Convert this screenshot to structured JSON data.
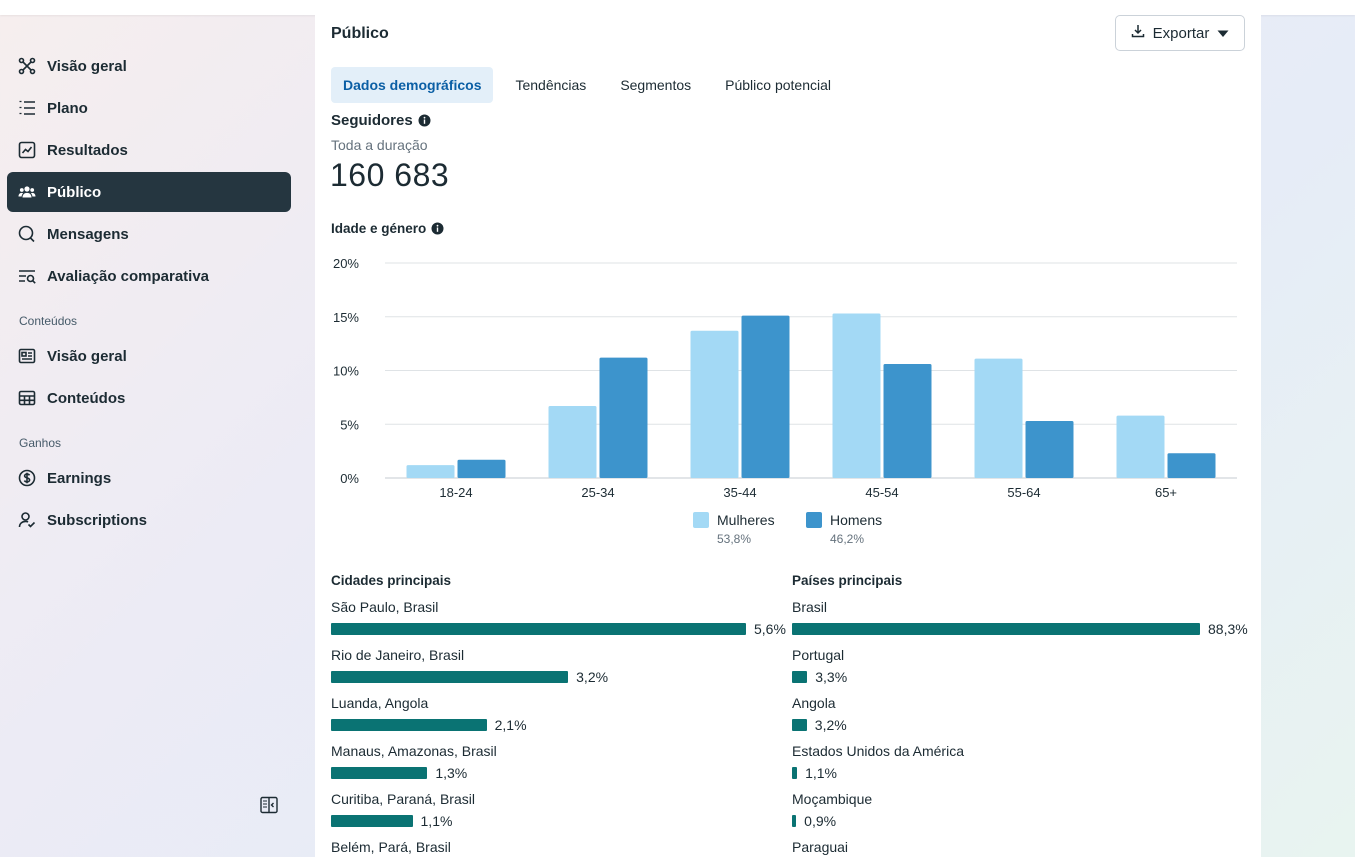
{
  "sidebar": {
    "items": [
      {
        "label": "Visão geral",
        "icon": "overview-icon"
      },
      {
        "label": "Plano",
        "icon": "list-icon"
      },
      {
        "label": "Resultados",
        "icon": "chart-line-icon"
      },
      {
        "label": "Público",
        "icon": "people-icon",
        "active": true
      },
      {
        "label": "Mensagens",
        "icon": "chat-icon"
      },
      {
        "label": "Avaliação comparativa",
        "icon": "benchmark-icon"
      }
    ],
    "content_label": "Conteúdos",
    "content_items": [
      {
        "label": "Visão geral",
        "icon": "content-overview-icon"
      },
      {
        "label": "Conteúdos",
        "icon": "table-icon"
      }
    ],
    "earnings_label": "Ganhos",
    "earnings_items": [
      {
        "label": "Earnings",
        "icon": "dollar-icon"
      },
      {
        "label": "Subscriptions",
        "icon": "subscriptions-icon"
      }
    ]
  },
  "main": {
    "title": "Público",
    "export_label": "Exportar",
    "tabs": [
      "Dados demográficos",
      "Tendências",
      "Segmentos",
      "Público potencial"
    ],
    "active_tab": 0,
    "followers": {
      "title": "Seguidores",
      "period": "Toda a duração",
      "value": "160 683"
    },
    "age_gender_title": "Idade e género",
    "top_cities_title": "Cidades principais",
    "top_countries_title": "Países principais",
    "cities": [
      {
        "name": "São Paulo, Brasil",
        "value": 5.6,
        "label": "5,6%"
      },
      {
        "name": "Rio de Janeiro, Brasil",
        "value": 3.2,
        "label": "3,2%"
      },
      {
        "name": "Luanda, Angola",
        "value": 2.1,
        "label": "2,1%"
      },
      {
        "name": "Manaus, Amazonas, Brasil",
        "value": 1.3,
        "label": "1,3%"
      },
      {
        "name": "Curitiba, Paraná, Brasil",
        "value": 1.1,
        "label": "1,1%"
      },
      {
        "name": "Belém, Pará, Brasil",
        "value": null,
        "label": ""
      }
    ],
    "countries": [
      {
        "name": "Brasil",
        "value": 88.3,
        "label": "88,3%"
      },
      {
        "name": "Portugal",
        "value": 3.3,
        "label": "3,3%"
      },
      {
        "name": "Angola",
        "value": 3.2,
        "label": "3,2%"
      },
      {
        "name": "Estados Unidos da América",
        "value": 1.1,
        "label": "1,1%"
      },
      {
        "name": "Moçambique",
        "value": 0.9,
        "label": "0,9%"
      },
      {
        "name": "Paraguai",
        "value": null,
        "label": ""
      }
    ]
  },
  "colors": {
    "women": "#a3d9f5",
    "men": "#3d94cc",
    "bar": "#0a7373",
    "active_nav": "#253640"
  },
  "chart_data": {
    "type": "bar",
    "categories": [
      "18-24",
      "25-34",
      "35-44",
      "45-54",
      "55-64",
      "65+"
    ],
    "series": [
      {
        "name": "Mulheres",
        "share": "53,8%",
        "values": [
          1.2,
          6.7,
          13.7,
          15.3,
          11.1,
          5.8
        ]
      },
      {
        "name": "Homens",
        "share": "46,2%",
        "values": [
          1.7,
          11.2,
          15.1,
          10.6,
          5.3,
          2.3
        ]
      }
    ],
    "yticks": [
      "0%",
      "5%",
      "10%",
      "15%",
      "20%"
    ],
    "ylim": [
      0,
      20
    ],
    "grid": true,
    "legend": "bottom-center"
  }
}
